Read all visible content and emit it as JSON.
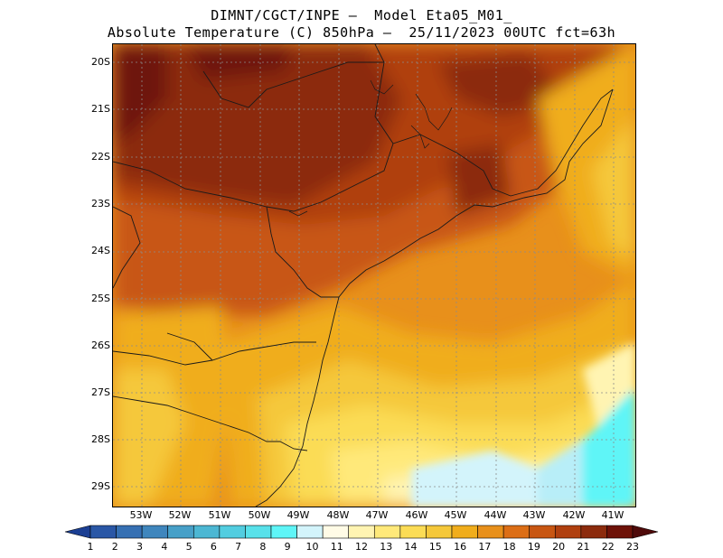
{
  "header": {
    "line1": "DIMNT/CGCT/INPE –  Model Eta05_M01_",
    "line2": "Absolute Temperature (C) 850hPa –  25/11/2023 00UTC fct=63h"
  },
  "map": {
    "region": "southeastern and southern Brazil",
    "lat_labels": [
      "20S",
      "21S",
      "22S",
      "23S",
      "24S",
      "25S",
      "26S",
      "27S",
      "28S",
      "29S"
    ],
    "lon_labels": [
      "53W",
      "52W",
      "51W",
      "50W",
      "49W",
      "48W",
      "47W",
      "46W",
      "45W",
      "44W",
      "43W",
      "42W",
      "41W"
    ]
  },
  "colorbar": {
    "labels": [
      "1",
      "2",
      "3",
      "4",
      "5",
      "6",
      "7",
      "8",
      "9",
      "10",
      "11",
      "12",
      "13",
      "14",
      "15",
      "16",
      "17",
      "18",
      "19",
      "20",
      "21",
      "22",
      "23"
    ],
    "colors": [
      "#1b3f93",
      "#2a57a6",
      "#3670b3",
      "#3f86bd",
      "#47a0c8",
      "#4cb7d3",
      "#52cde0",
      "#58e1ea",
      "#5ef5f7",
      "#d3f4fb",
      "#fffbe6",
      "#fff4b2",
      "#ffe97a",
      "#fbdc55",
      "#f5c83a",
      "#f0ad1c",
      "#e8901b",
      "#dc6e16",
      "#c85612",
      "#b0400f",
      "#8c2b0d",
      "#6e1208",
      "#4f0a0a"
    ]
  }
}
